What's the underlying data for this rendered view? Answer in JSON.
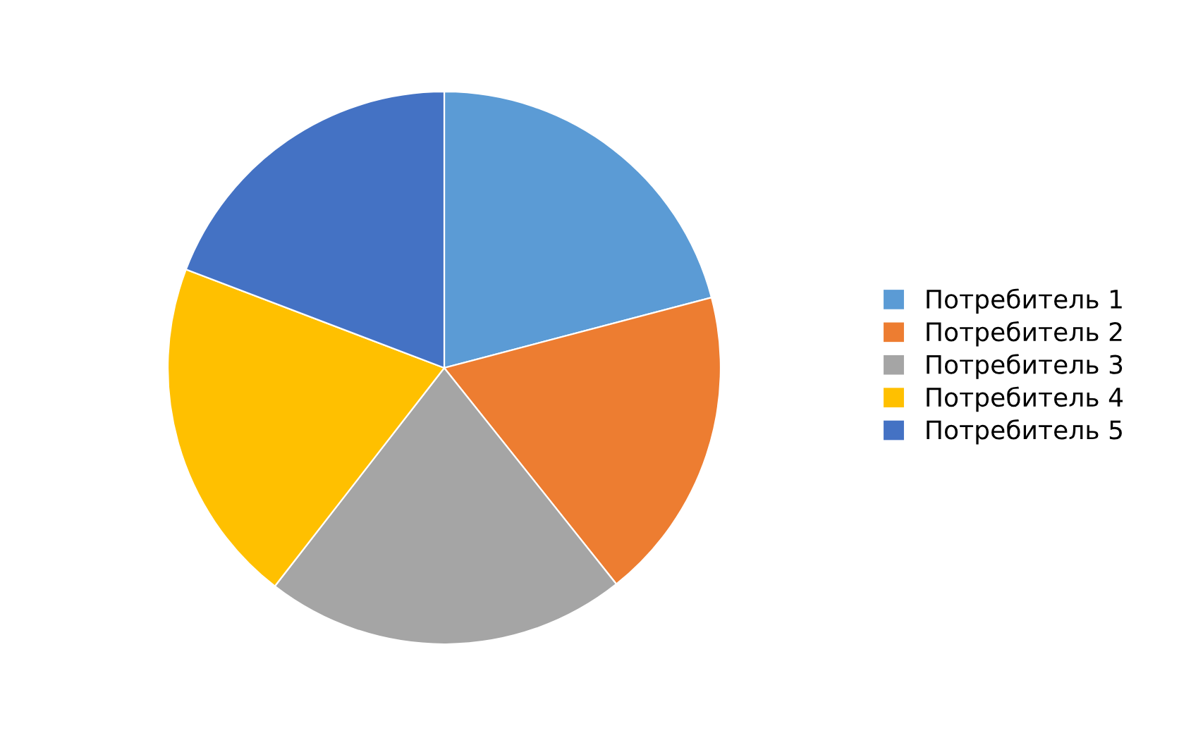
{
  "chart_data": {
    "type": "pie",
    "categories": [
      "Потребитель 1",
      "Потребитель 2",
      "Потребитель 3",
      "Потребитель 4",
      "Потребитель 5"
    ],
    "values": [
      20.9,
      18.4,
      21.2,
      20.3,
      19.2
    ],
    "colors": [
      "#5b9bd5",
      "#ed7d31",
      "#a5a5a5",
      "#ffc000",
      "#4472c4"
    ],
    "legend": "right"
  }
}
